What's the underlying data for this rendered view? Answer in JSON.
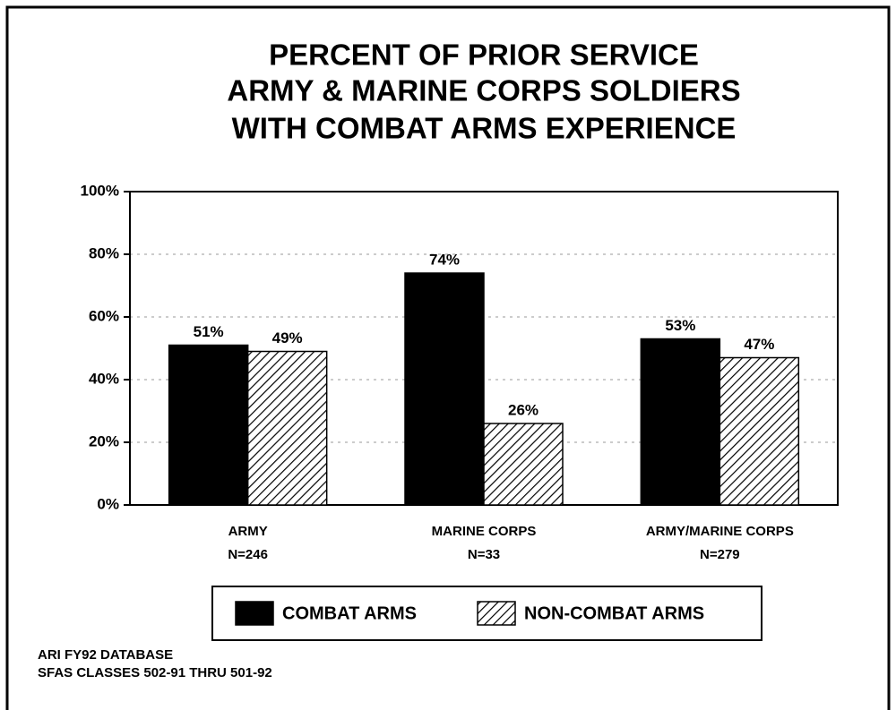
{
  "chart_data": {
    "type": "bar",
    "title": [
      "PERCENT OF PRIOR SERVICE",
      "ARMY & MARINE CORPS SOLDIERS",
      "WITH COMBAT ARMS EXPERIENCE"
    ],
    "categories": [
      "ARMY",
      "MARINE CORPS",
      "ARMY/MARINE CORPS"
    ],
    "category_counts": [
      "N=246",
      "N=33",
      "N=279"
    ],
    "series": [
      {
        "name": "COMBAT ARMS",
        "color": "#000000",
        "hatch": false,
        "values": [
          51,
          74,
          53
        ],
        "value_labels": [
          "51%",
          "74%",
          "53%"
        ]
      },
      {
        "name": "NON-COMBAT ARMS",
        "color": "#000000",
        "hatch": true,
        "values": [
          49,
          26,
          47
        ],
        "value_labels": [
          "49%",
          "26%",
          "47%"
        ]
      }
    ],
    "ylim": [
      0,
      100
    ],
    "yticks": [
      {
        "value": 0,
        "label": "0%"
      },
      {
        "value": 20,
        "label": "20%"
      },
      {
        "value": 40,
        "label": "40%"
      },
      {
        "value": 60,
        "label": "60%"
      },
      {
        "value": 80,
        "label": "80%"
      },
      {
        "value": 100,
        "label": "100%"
      }
    ],
    "grid": true,
    "legend": "bottom",
    "footnote": [
      "ARI FY92 DATABASE",
      "SFAS CLASSES 502-91 THRU 501-92"
    ]
  }
}
